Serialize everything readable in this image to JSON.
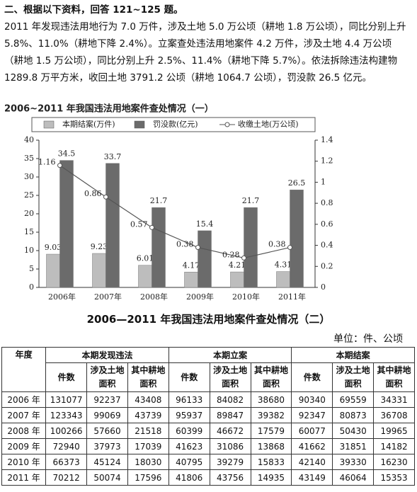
{
  "intro": {
    "heading": "二、根据以下资料，回答 121~125 题。",
    "paragraph": "2011 年发现违法用地行为 7.0 万件，涉及土地 5.0 万公顷（耕地 1.8 万公顷），同比分别上升 5.8%、11.0%（耕地下降 2.4%）。立案查处违法用地案件 4.2 万件，涉及土地 4.4 万公顷（耕地 1.5 万公顷），同比分别上升 2.5%、11.4%（耕地下降 5.7%）。依法拆除违法构建物 1289.8 万平方米，收回土地 3791.2 公顷（耕地 1064.7 公顷），罚没款 26.5 亿元。"
  },
  "chart_data": {
    "type": "bar-line",
    "title": "2006~2011 年我国违法用地案件查处情况（一）",
    "categories": [
      "2006年",
      "2007年",
      "2008年",
      "2009年",
      "2010年",
      "2011年"
    ],
    "series": [
      {
        "name": "本期结案(万件)",
        "color": "#bdbdbd",
        "type": "bar",
        "values": [
          9.03,
          9.23,
          6.01,
          4.17,
          4.21,
          4.31
        ]
      },
      {
        "name": "罚没款(亿元)",
        "color": "#6b6b6b",
        "type": "bar",
        "values": [
          34.5,
          33.7,
          21.7,
          15.4,
          21.7,
          26.5
        ]
      },
      {
        "name": "收缴土地(万公顷)",
        "color": "#555555",
        "type": "line",
        "axis": "y2",
        "values": [
          1.16,
          0.86,
          0.57,
          0.38,
          0.28,
          0.38
        ]
      }
    ],
    "ylim": [
      0,
      40
    ],
    "yticks": [
      0,
      5,
      10,
      15,
      20,
      25,
      30,
      35,
      40
    ],
    "y2lim": [
      0,
      1.4
    ],
    "y2ticks": [
      0,
      0.2,
      0.4,
      0.6,
      0.8,
      1,
      1.2,
      1.4
    ],
    "grid": false,
    "legend": "top"
  },
  "table": {
    "title": "2006—2011 年我国违法用地案件查处情况（二）",
    "unit": "单位：件、公顷",
    "corner": "年度",
    "groups": [
      "本期发现违法",
      "本期立案",
      "本期结案"
    ],
    "sub_headers": [
      "件数",
      "涉及土地面积",
      "其中耕地面积"
    ],
    "rows": [
      [
        "2006 年",
        131077,
        92237,
        43408,
        96133,
        84082,
        38680,
        90340,
        69559,
        34331
      ],
      [
        "2007 年",
        123343,
        99069,
        43739,
        95937,
        89847,
        39382,
        92347,
        80873,
        36708
      ],
      [
        "2008 年",
        100266,
        57660,
        21518,
        60399,
        46672,
        17579,
        60077,
        50430,
        19965
      ],
      [
        "2009 年",
        72940,
        37973,
        17039,
        41623,
        31086,
        13868,
        41662,
        31851,
        14182
      ],
      [
        "2010 年",
        66373,
        45124,
        18030,
        40795,
        39279,
        15833,
        42140,
        39330,
        16230
      ],
      [
        "2011 年",
        70212,
        50074,
        17596,
        41806,
        43756,
        14935,
        43149,
        46064,
        15353
      ]
    ]
  }
}
